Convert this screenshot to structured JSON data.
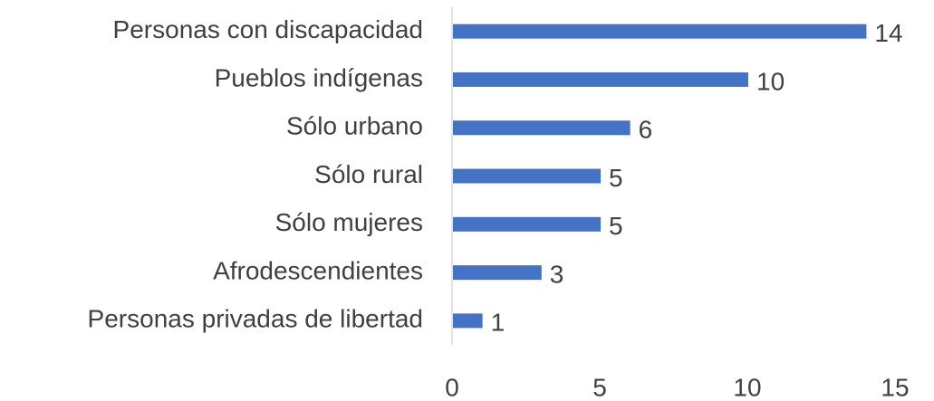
{
  "chart_data": {
    "type": "bar",
    "orientation": "horizontal",
    "categories": [
      "Personas con discapacidad",
      "Pueblos indígenas",
      "Sólo urbano",
      "Sólo rural",
      "Sólo mujeres",
      "Afrodescendientes",
      "Personas privadas de libertad"
    ],
    "values": [
      14,
      10,
      6,
      5,
      5,
      3,
      1
    ],
    "color": "#4472c4",
    "xlim": [
      0,
      15
    ],
    "xticks": [
      0,
      5,
      10,
      15
    ],
    "grid": false
  }
}
